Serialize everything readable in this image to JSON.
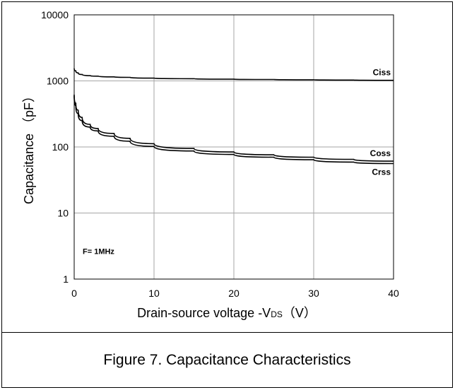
{
  "caption": "Figure 7. Capacitance Characteristics",
  "chart_data": {
    "type": "line",
    "title": "",
    "xlabel": "Drain-source voltage -V",
    "xlabel_sub": "DS",
    "xlabel_unit": "（V）",
    "ylabel": "Capacitance （pF）",
    "xlim": [
      0,
      40
    ],
    "ylim": [
      1,
      10000
    ],
    "yscale": "log",
    "grid": true,
    "x_ticks": [
      0,
      10,
      20,
      30,
      40
    ],
    "x_tick_labels": [
      "0",
      "10",
      "20",
      "30",
      "40"
    ],
    "y_ticks": [
      1,
      10,
      100,
      1000,
      10000
    ],
    "y_tick_labels": [
      "1",
      "10",
      "100",
      "1000",
      "10000"
    ],
    "annotation": "F= 1MHz",
    "series": [
      {
        "name": "Ciss",
        "x": [
          0,
          0.2,
          0.5,
          1,
          2,
          3,
          5,
          7,
          10,
          15,
          20,
          25,
          30,
          35,
          40
        ],
        "values": [
          1550,
          1420,
          1320,
          1250,
          1200,
          1180,
          1150,
          1130,
          1100,
          1080,
          1060,
          1050,
          1040,
          1030,
          1020
        ]
      },
      {
        "name": "Coss",
        "x": [
          0,
          0.2,
          0.5,
          1,
          2,
          3,
          5,
          7,
          10,
          15,
          20,
          25,
          30,
          35,
          40
        ],
        "values": [
          620,
          460,
          360,
          280,
          220,
          190,
          160,
          135,
          112,
          95,
          84,
          76,
          70,
          65,
          61
        ]
      },
      {
        "name": "Crss",
        "x": [
          0,
          0.2,
          0.5,
          1,
          2,
          3,
          5,
          7,
          10,
          15,
          20,
          25,
          30,
          35,
          40
        ],
        "values": [
          600,
          420,
          320,
          250,
          200,
          175,
          145,
          122,
          102,
          87,
          77,
          70,
          64,
          59,
          56
        ]
      }
    ]
  }
}
